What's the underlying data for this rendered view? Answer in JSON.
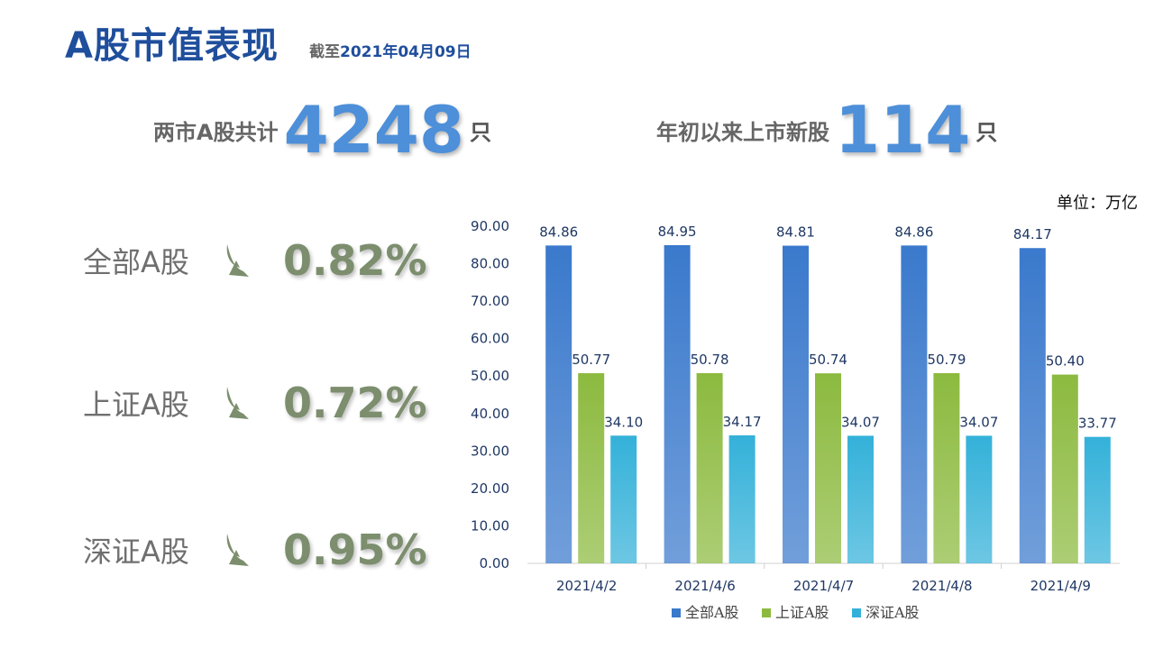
{
  "header": {
    "title": "A股市值表现",
    "asof_prefix": "截至",
    "asof_date": "2021年04月09日"
  },
  "stats": [
    {
      "label": "两市A股共计",
      "value": "4248",
      "unit": "只"
    },
    {
      "label": "年初以来上市新股",
      "value": "114",
      "unit": "只"
    }
  ],
  "changes": [
    {
      "name": "全部A股",
      "pct": "0.82%",
      "icon": "down-arrow-icon"
    },
    {
      "name": "上证A股",
      "pct": "0.72%",
      "icon": "down-arrow-icon"
    },
    {
      "name": "深证A股",
      "pct": "0.95%",
      "icon": "down-arrow-icon"
    }
  ],
  "colors": {
    "title": "#1f4e9c",
    "stat_number": "#4d8fd9",
    "change": "#7c8e6d"
  },
  "chart_unit": "单位：万亿",
  "chart_data": {
    "type": "bar",
    "categories": [
      "2021/4/2",
      "2021/4/6",
      "2021/4/7",
      "2021/4/8",
      "2021/4/9"
    ],
    "series": [
      {
        "name": "全部A股",
        "values": [
          84.86,
          84.95,
          84.81,
          84.86,
          84.17
        ],
        "color": "#3a79cc"
      },
      {
        "name": "上证A股",
        "values": [
          50.77,
          50.78,
          50.74,
          50.79,
          50.4
        ],
        "color": "#8cba3f"
      },
      {
        "name": "深证A股",
        "values": [
          34.1,
          34.17,
          34.07,
          34.07,
          33.77
        ],
        "color": "#34b1d9"
      }
    ],
    "ylim": [
      0,
      90
    ],
    "yticks": [
      "0.00",
      "10.00",
      "20.00",
      "30.00",
      "40.00",
      "50.00",
      "60.00",
      "70.00",
      "80.00",
      "90.00"
    ],
    "legend": "bottom",
    "grid": false
  }
}
